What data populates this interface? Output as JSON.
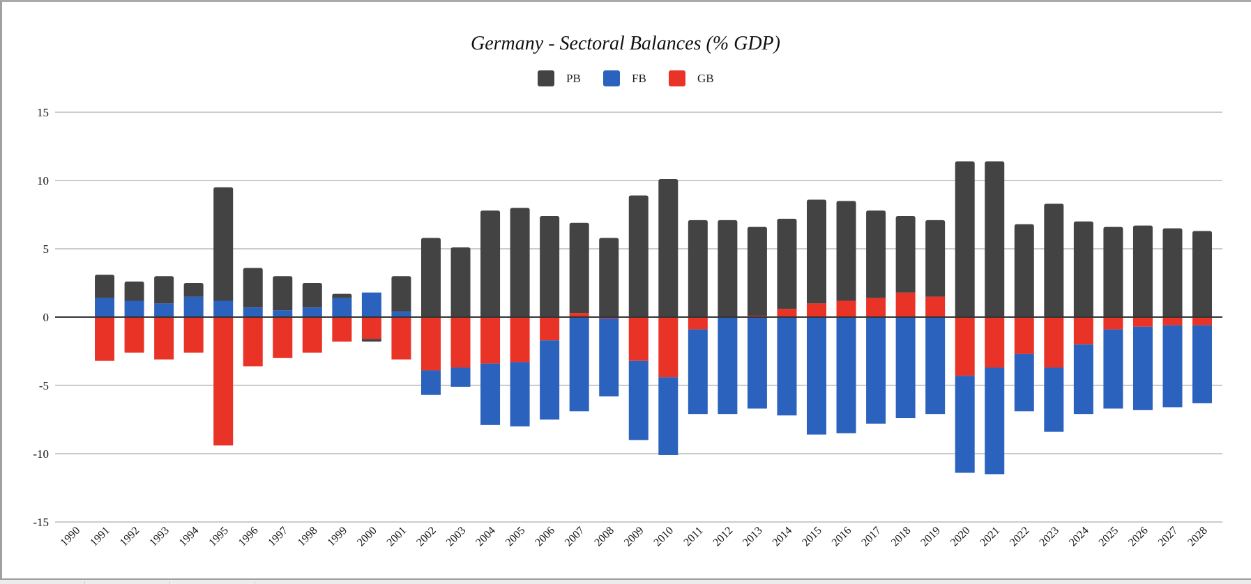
{
  "chart_data": {
    "type": "bar",
    "stacked": true,
    "title": "Germany  - Sectoral Balances (% GDP)",
    "xlabel": "",
    "ylabel": "",
    "ylim": [
      -15,
      15
    ],
    "yticks": [
      15,
      10,
      5,
      0,
      -5,
      -10,
      -15
    ],
    "grid": true,
    "legend_position": "top",
    "categories": [
      "1990",
      "1991",
      "1992",
      "1993",
      "1994",
      "1995",
      "1996",
      "1997",
      "1998",
      "1999",
      "2000",
      "2001",
      "2002",
      "2003",
      "2004",
      "2005",
      "2006",
      "2007",
      "2008",
      "2009",
      "2010",
      "2011",
      "2012",
      "2013",
      "2014",
      "2015",
      "2016",
      "2017",
      "2018",
      "2019",
      "2020",
      "2021",
      "2022",
      "2023",
      "2024",
      "2025",
      "2026",
      "2027",
      "2028"
    ],
    "series": [
      {
        "name": "PB",
        "color": "#434343",
        "values": [
          null,
          1.7,
          1.4,
          2.0,
          1.0,
          8.3,
          2.9,
          2.5,
          1.8,
          0.3,
          -0.2,
          2.6,
          5.8,
          5.1,
          7.8,
          8.0,
          7.4,
          6.6,
          5.8,
          8.9,
          10.1,
          7.1,
          7.1,
          6.5,
          6.6,
          7.6,
          7.3,
          6.4,
          5.6,
          5.6,
          11.4,
          11.4,
          6.8,
          8.3,
          7.0,
          6.6,
          6.7,
          6.5,
          6.3
        ]
      },
      {
        "name": "FB",
        "color": "#2b62bd",
        "values": [
          null,
          1.4,
          1.2,
          1.0,
          1.5,
          1.2,
          0.7,
          0.5,
          0.7,
          1.4,
          1.8,
          0.4,
          -1.8,
          -1.4,
          -4.5,
          -4.7,
          -5.8,
          -6.9,
          -5.7,
          -5.8,
          -5.7,
          -6.2,
          -7.1,
          -6.7,
          -7.2,
          -8.6,
          -8.5,
          -7.8,
          -7.4,
          -7.1,
          -7.1,
          -7.8,
          -4.2,
          -4.7,
          -5.1,
          -5.8,
          -6.1,
          -6.0,
          -5.7
        ]
      },
      {
        "name": "GB",
        "color": "#e93326",
        "values": [
          null,
          -3.2,
          -2.6,
          -3.1,
          -2.6,
          -9.4,
          -3.6,
          -3.0,
          -2.6,
          -1.8,
          -1.6,
          -3.1,
          -3.9,
          -3.7,
          -3.4,
          -3.3,
          -1.7,
          0.3,
          -0.1,
          -3.2,
          -4.4,
          -0.9,
          0.0,
          0.1,
          0.6,
          1.0,
          1.2,
          1.4,
          1.8,
          1.5,
          -4.3,
          -3.7,
          -2.7,
          -3.7,
          -2.0,
          -0.9,
          -0.7,
          -0.6,
          -0.6
        ]
      }
    ],
    "stack_order_from_zero": [
      "GB",
      "FB",
      "PB"
    ]
  }
}
